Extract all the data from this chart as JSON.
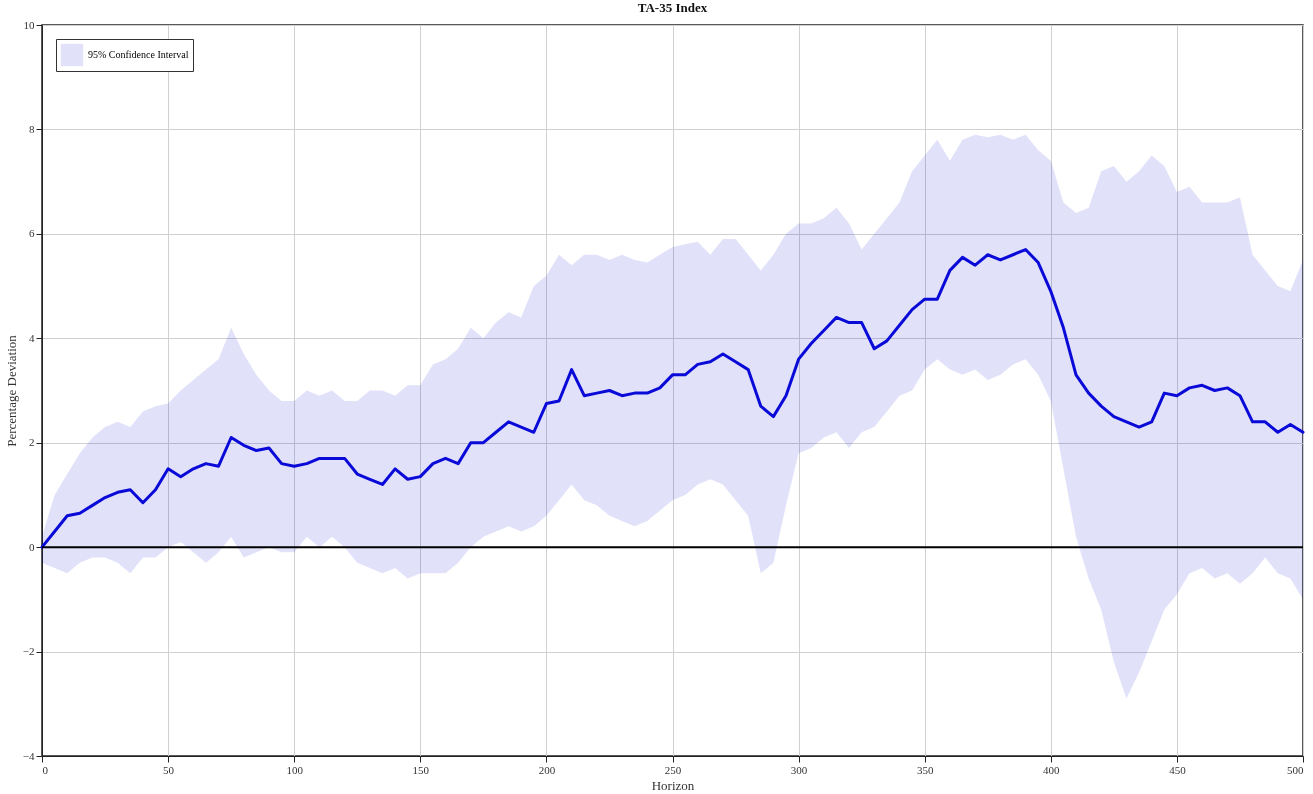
{
  "chart_data": {
    "type": "line",
    "title": "TA-35 Index",
    "xlabel": "Horizon",
    "ylabel": "Percentage Deviation",
    "xlim": [
      0,
      500
    ],
    "xticks": [
      0,
      50,
      100,
      150,
      200,
      250,
      300,
      350,
      400,
      450,
      500
    ],
    "ylim": [
      -4,
      10
    ],
    "yticks": [
      -4,
      -2,
      0,
      2,
      4,
      6,
      8,
      10
    ],
    "grid": true,
    "legend": "top left",
    "line_style": "solid",
    "marker": "none",
    "ref_lines": [
      {
        "axis": "y",
        "value": 0,
        "color": "#000000"
      }
    ],
    "x": [
      0,
      5,
      10,
      15,
      20,
      25,
      30,
      35,
      40,
      45,
      50,
      55,
      60,
      65,
      70,
      75,
      80,
      85,
      90,
      95,
      100,
      105,
      110,
      115,
      120,
      125,
      130,
      135,
      140,
      145,
      150,
      155,
      160,
      165,
      170,
      175,
      180,
      185,
      190,
      195,
      200,
      205,
      210,
      215,
      220,
      225,
      230,
      235,
      240,
      245,
      250,
      255,
      260,
      265,
      270,
      275,
      280,
      285,
      290,
      295,
      300,
      305,
      310,
      315,
      320,
      325,
      330,
      335,
      340,
      345,
      350,
      355,
      360,
      365,
      370,
      375,
      380,
      385,
      390,
      395,
      400,
      405,
      410,
      415,
      420,
      425,
      430,
      435,
      440,
      445,
      450,
      455,
      460,
      465,
      470,
      475,
      480,
      485,
      490,
      495,
      500
    ],
    "series": [
      {
        "name": "95% Confidence Interval",
        "color": "#0a0ad8",
        "values": [
          0,
          0.3,
          0.6,
          0.65,
          0.8,
          0.95,
          1.05,
          1.1,
          0.85,
          1.1,
          1.5,
          1.35,
          1.5,
          1.6,
          1.55,
          2.1,
          1.95,
          1.85,
          1.9,
          1.6,
          1.55,
          1.6,
          1.7,
          1.7,
          1.7,
          1.4,
          1.3,
          1.2,
          1.5,
          1.3,
          1.35,
          1.6,
          1.7,
          1.6,
          2.0,
          2.0,
          2.2,
          2.4,
          2.3,
          2.2,
          2.75,
          2.8,
          3.4,
          2.9,
          2.95,
          3.0,
          2.9,
          2.95,
          2.95,
          3.05,
          3.3,
          3.3,
          3.5,
          3.55,
          3.7,
          3.55,
          3.4,
          2.7,
          2.5,
          2.9,
          3.6,
          3.9,
          4.15,
          4.4,
          4.3,
          4.3,
          3.8,
          3.95,
          4.25,
          4.55,
          4.75,
          4.75,
          5.3,
          5.55,
          5.4,
          5.6,
          5.5,
          5.6,
          5.7,
          5.45,
          4.9,
          4.2,
          3.3,
          2.95,
          2.7,
          2.5,
          2.4,
          2.3,
          2.4,
          2.95,
          2.9,
          3.05,
          3.1,
          3.0,
          3.05,
          2.9,
          2.4,
          2.4,
          2.2,
          2.35,
          2.2
        ],
        "lower": [
          -0.3,
          -0.4,
          -0.5,
          -0.3,
          -0.2,
          -0.2,
          -0.3,
          -0.5,
          -0.2,
          -0.2,
          0.0,
          0.1,
          -0.1,
          -0.3,
          -0.1,
          0.2,
          -0.2,
          -0.1,
          0.0,
          -0.1,
          -0.1,
          0.2,
          0.0,
          0.2,
          0.0,
          -0.3,
          -0.4,
          -0.5,
          -0.4,
          -0.6,
          -0.5,
          -0.5,
          -0.5,
          -0.3,
          0.0,
          0.2,
          0.3,
          0.4,
          0.3,
          0.4,
          0.6,
          0.9,
          1.2,
          0.9,
          0.8,
          0.6,
          0.5,
          0.4,
          0.5,
          0.7,
          0.9,
          1.0,
          1.2,
          1.3,
          1.2,
          0.9,
          0.6,
          -0.5,
          -0.3,
          0.8,
          1.8,
          1.9,
          2.1,
          2.2,
          1.9,
          2.2,
          2.3,
          2.6,
          2.9,
          3.0,
          3.4,
          3.6,
          3.4,
          3.3,
          3.4,
          3.2,
          3.3,
          3.5,
          3.6,
          3.3,
          2.8,
          1.5,
          0.2,
          -0.6,
          -1.2,
          -2.2,
          -2.9,
          -2.4,
          -1.8,
          -1.2,
          -0.9,
          -0.5,
          -0.4,
          -0.6,
          -0.5,
          -0.7,
          -0.5,
          -0.2,
          -0.5,
          -0.6,
          -1.0
        ],
        "upper": [
          0.2,
          1.0,
          1.4,
          1.8,
          2.1,
          2.3,
          2.4,
          2.3,
          2.6,
          2.7,
          2.75,
          3.0,
          3.2,
          3.4,
          3.6,
          4.2,
          3.7,
          3.3,
          3.0,
          2.8,
          2.8,
          3.0,
          2.9,
          3.0,
          2.8,
          2.8,
          3.0,
          3.0,
          2.9,
          3.1,
          3.1,
          3.5,
          3.6,
          3.8,
          4.2,
          4.0,
          4.3,
          4.5,
          4.4,
          5.0,
          5.2,
          5.6,
          5.4,
          5.6,
          5.6,
          5.5,
          5.6,
          5.5,
          5.45,
          5.6,
          5.75,
          5.8,
          5.85,
          5.6,
          5.9,
          5.9,
          5.6,
          5.3,
          5.6,
          6.0,
          6.2,
          6.2,
          6.3,
          6.5,
          6.2,
          5.7,
          6.0,
          6.3,
          6.6,
          7.2,
          7.5,
          7.8,
          7.4,
          7.8,
          7.9,
          7.85,
          7.9,
          7.8,
          7.9,
          7.6,
          7.4,
          6.6,
          6.4,
          6.5,
          7.2,
          7.3,
          7.0,
          7.2,
          7.5,
          7.3,
          6.8,
          6.9,
          6.6,
          6.6,
          6.6,
          6.7,
          5.6,
          5.3,
          5.0,
          4.9,
          5.5
        ]
      }
    ]
  }
}
